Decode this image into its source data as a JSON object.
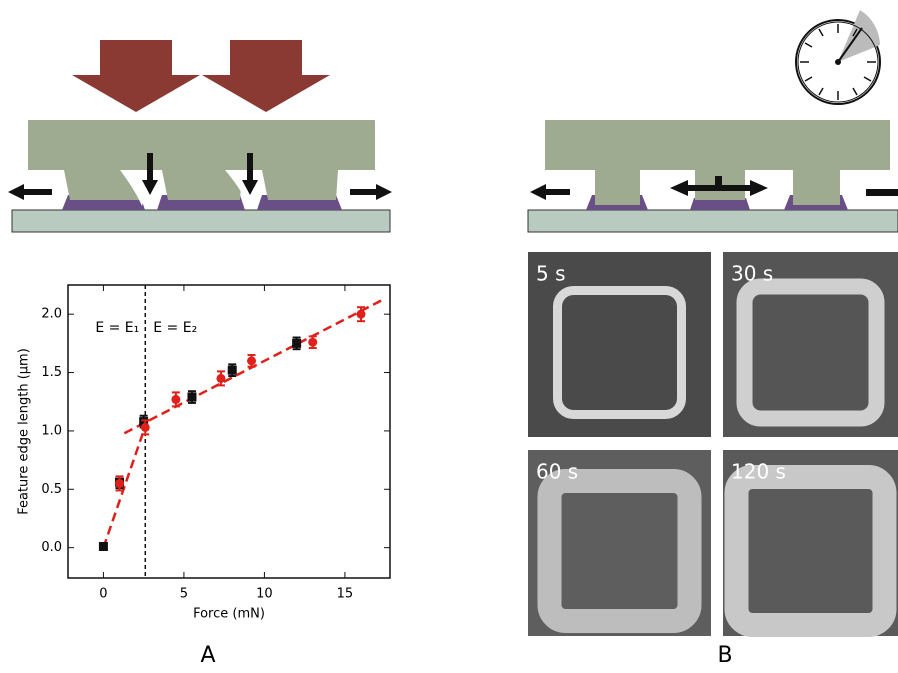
{
  "chart_data": {
    "type": "scatter",
    "x_label": "Force (mN)",
    "y_label": "Feature edge length (μm)",
    "xlim": [
      -2.2,
      17.8
    ],
    "xticks": [
      0,
      5,
      10,
      15
    ],
    "ylim": [
      -0.26,
      2.25
    ],
    "yticks": [
      {
        "value": 0,
        "label": "0.0"
      },
      0.5,
      {
        "value": 1,
        "label": "1.0"
      },
      1.5,
      {
        "value": 2,
        "label": "2.0"
      }
    ],
    "series": [
      {
        "color": "#111111",
        "marker": "square",
        "x": [
          0,
          1,
          2.5,
          5.5,
          8,
          12
        ],
        "values": [
          0.01,
          0.56,
          1.08,
          1.29,
          1.52,
          1.75
        ],
        "errors": [
          0.02,
          0.05,
          0.05,
          0.05,
          0.05,
          0.05
        ]
      },
      {
        "color": "#e0201b",
        "marker": "circle",
        "x": [
          1,
          2.6,
          4.5,
          7.3,
          9.2,
          13,
          16
        ],
        "values": [
          0.55,
          1.03,
          1.27,
          1.45,
          1.6,
          1.76,
          2.0
        ],
        "errors": [
          0.06,
          0.06,
          0.06,
          0.06,
          0.05,
          0.05,
          0.06
        ]
      }
    ],
    "fit_lines": [
      {
        "color": "#e0201b",
        "x": [
          0,
          2.8
        ],
        "values": [
          0,
          1.12
        ]
      },
      {
        "color": "#e0201b",
        "x": [
          1.3,
          17.3
        ],
        "values": [
          0.98,
          2.12
        ]
      }
    ],
    "threshold_x": 2.6,
    "annotations": [
      "E = E₁",
      "E = E₂"
    ]
  },
  "panel_labels": [
    "A",
    "B"
  ],
  "micrographs": [
    "5 s",
    "30 s",
    "60 s",
    "120 s"
  ]
}
